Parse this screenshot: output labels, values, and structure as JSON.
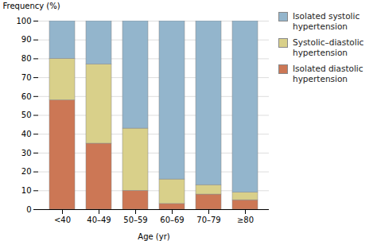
{
  "chart_data": {
    "type": "bar",
    "stacked": true,
    "categories": [
      "<40",
      "40–49",
      "50–59",
      "60–69",
      "70–79",
      "≥80"
    ],
    "series": [
      {
        "name": "Isolated diastolic\nhypertension",
        "color": "#cc7755",
        "values": [
          58,
          35,
          10,
          3,
          8,
          5
        ]
      },
      {
        "name": "Systolic–diastolic\nhypertension",
        "color": "#d9d08a",
        "values": [
          22,
          42,
          33,
          13,
          5,
          4
        ]
      },
      {
        "name": "Isolated systolic\nhypertension",
        "color": "#93b5cc",
        "values": [
          20,
          23,
          57,
          84,
          87,
          91
        ]
      }
    ],
    "xlabel": "Age (yr)",
    "ylabel": "Frequency (%)",
    "ylim": [
      0,
      100
    ],
    "yticks": [
      0,
      10,
      20,
      30,
      40,
      50,
      60,
      70,
      80,
      90,
      100
    ],
    "grid": true,
    "legend": "upper right"
  }
}
